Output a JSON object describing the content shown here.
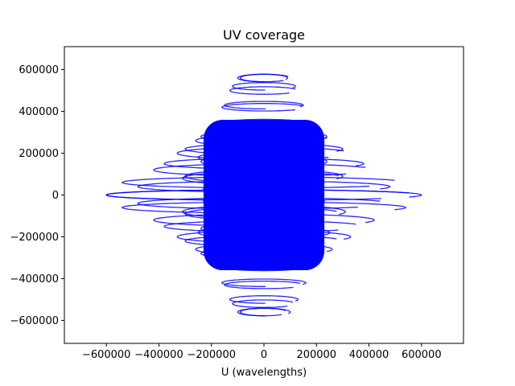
{
  "chart_data": {
    "type": "scatter",
    "title": "UV coverage",
    "xlabel": "U (wavelengths)",
    "ylabel": "",
    "xlim": [
      -760000,
      760000
    ],
    "ylim": [
      -710000,
      710000
    ],
    "x_ticks": [
      -600000,
      -400000,
      -200000,
      0,
      200000,
      400000,
      600000
    ],
    "y_ticks": [
      -600000,
      -400000,
      -200000,
      0,
      200000,
      400000,
      600000
    ],
    "x_tick_labels": [
      "−600000",
      "−400000",
      "−200000",
      "0",
      "200000",
      "400000",
      "600000"
    ],
    "y_tick_labels": [
      "−600000",
      "−400000",
      "−200000",
      "0",
      "200000",
      "400000",
      "600000"
    ],
    "grid": false,
    "legend": "none",
    "series_color": "#0000ff",
    "tracks": [
      {
        "u": 600000,
        "v": 0,
        "ecc": 0.12
      },
      {
        "u": 540000,
        "v": 60000,
        "ecc": 0.14
      },
      {
        "u": 480000,
        "v": -40000,
        "ecc": 0.16
      },
      {
        "u": 420000,
        "v": 120000,
        "ecc": 0.2
      },
      {
        "u": 380000,
        "v": -150000,
        "ecc": 0.2
      },
      {
        "u": 330000,
        "v": 200000,
        "ecc": 0.25
      },
      {
        "u": 300000,
        "v": -220000,
        "ecc": 0.25
      },
      {
        "u": 260000,
        "v": 260000,
        "ecc": 0.3
      },
      {
        "u": 240000,
        "v": -280000,
        "ecc": 0.3
      },
      {
        "u": 200000,
        "v": 320000,
        "ecc": 0.35
      },
      {
        "u": 180000,
        "v": -340000,
        "ecc": 0.35
      },
      {
        "u": 160000,
        "v": 420000,
        "ecc": 0.2
      },
      {
        "u": 150000,
        "v": -430000,
        "ecc": 0.2
      },
      {
        "u": 130000,
        "v": 500000,
        "ecc": 0.15
      },
      {
        "u": 120000,
        "v": -520000,
        "ecc": 0.15
      },
      {
        "u": 100000,
        "v": 560000,
        "ecc": 0.12
      },
      {
        "u": 90000,
        "v": -560000,
        "ecc": 0.12
      },
      {
        "u": 110000,
        "v": 40000,
        "ecc": 0.6
      },
      {
        "u": 90000,
        "v": 80000,
        "ecc": 0.8
      },
      {
        "u": 70000,
        "v": -100000,
        "ecc": 0.9
      },
      {
        "u": 140000,
        "v": 150000,
        "ecc": 0.7
      },
      {
        "u": 120000,
        "v": -180000,
        "ecc": 0.7
      },
      {
        "u": 200000,
        "v": 100000,
        "ecc": 0.5
      },
      {
        "u": 190000,
        "v": -120000,
        "ecc": 0.5
      },
      {
        "u": 60000,
        "v": 300000,
        "ecc": 0.5
      },
      {
        "u": 50000,
        "v": -300000,
        "ecc": 0.5
      },
      {
        "u": 170000,
        "v": 250000,
        "ecc": 0.45
      },
      {
        "u": 160000,
        "v": -250000,
        "ecc": 0.45
      },
      {
        "u": 80000,
        "v": 200000,
        "ecc": 0.9
      },
      {
        "u": 75000,
        "v": -200000,
        "ecc": 0.9
      },
      {
        "u": 230000,
        "v": 30000,
        "ecc": 0.4
      },
      {
        "u": 250000,
        "v": 180000,
        "ecc": 0.35
      },
      {
        "u": 240000,
        "v": -160000,
        "ecc": 0.35
      },
      {
        "u": 310000,
        "v": 80000,
        "ecc": 0.3
      },
      {
        "u": 300000,
        "v": -90000,
        "ecc": 0.3
      }
    ]
  }
}
